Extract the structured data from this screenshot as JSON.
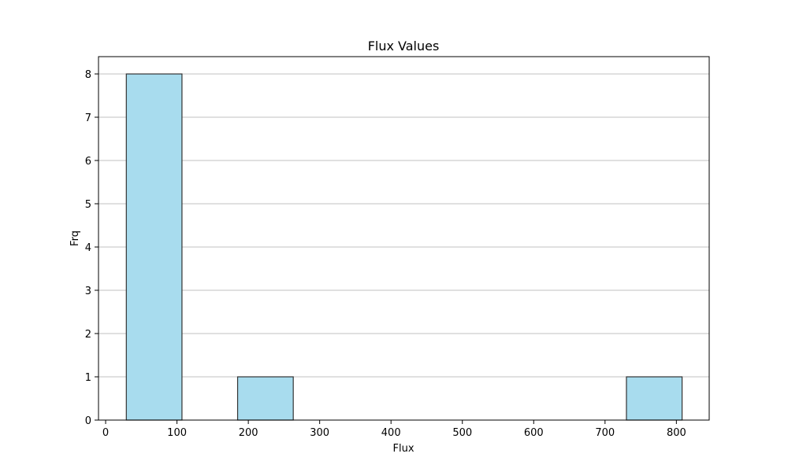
{
  "chart_data": {
    "type": "bar",
    "title": "Flux Values",
    "xlabel": "Flux",
    "ylabel": "Frq",
    "xlim": [
      -10,
      846
    ],
    "ylim": [
      0,
      8.4
    ],
    "x_ticks": [
      0,
      100,
      200,
      300,
      400,
      500,
      600,
      700,
      800
    ],
    "y_ticks": [
      0,
      1,
      2,
      3,
      4,
      5,
      6,
      7,
      8
    ],
    "bins": [
      {
        "x0": 29,
        "x1": 107,
        "value": 8
      },
      {
        "x0": 107,
        "x1": 185,
        "value": 0
      },
      {
        "x0": 185,
        "x1": 263,
        "value": 1
      },
      {
        "x0": 263,
        "x1": 341,
        "value": 0
      },
      {
        "x0": 341,
        "x1": 418,
        "value": 0
      },
      {
        "x0": 418,
        "x1": 496,
        "value": 0
      },
      {
        "x0": 496,
        "x1": 574,
        "value": 0
      },
      {
        "x0": 574,
        "x1": 652,
        "value": 0
      },
      {
        "x0": 652,
        "x1": 730,
        "value": 0
      },
      {
        "x0": 730,
        "x1": 808,
        "value": 1
      }
    ],
    "grid": "y-axis only",
    "bar_color": "#a8dcee",
    "bar_edge_color": "#333333",
    "grid_color": "#c0c0c0"
  }
}
